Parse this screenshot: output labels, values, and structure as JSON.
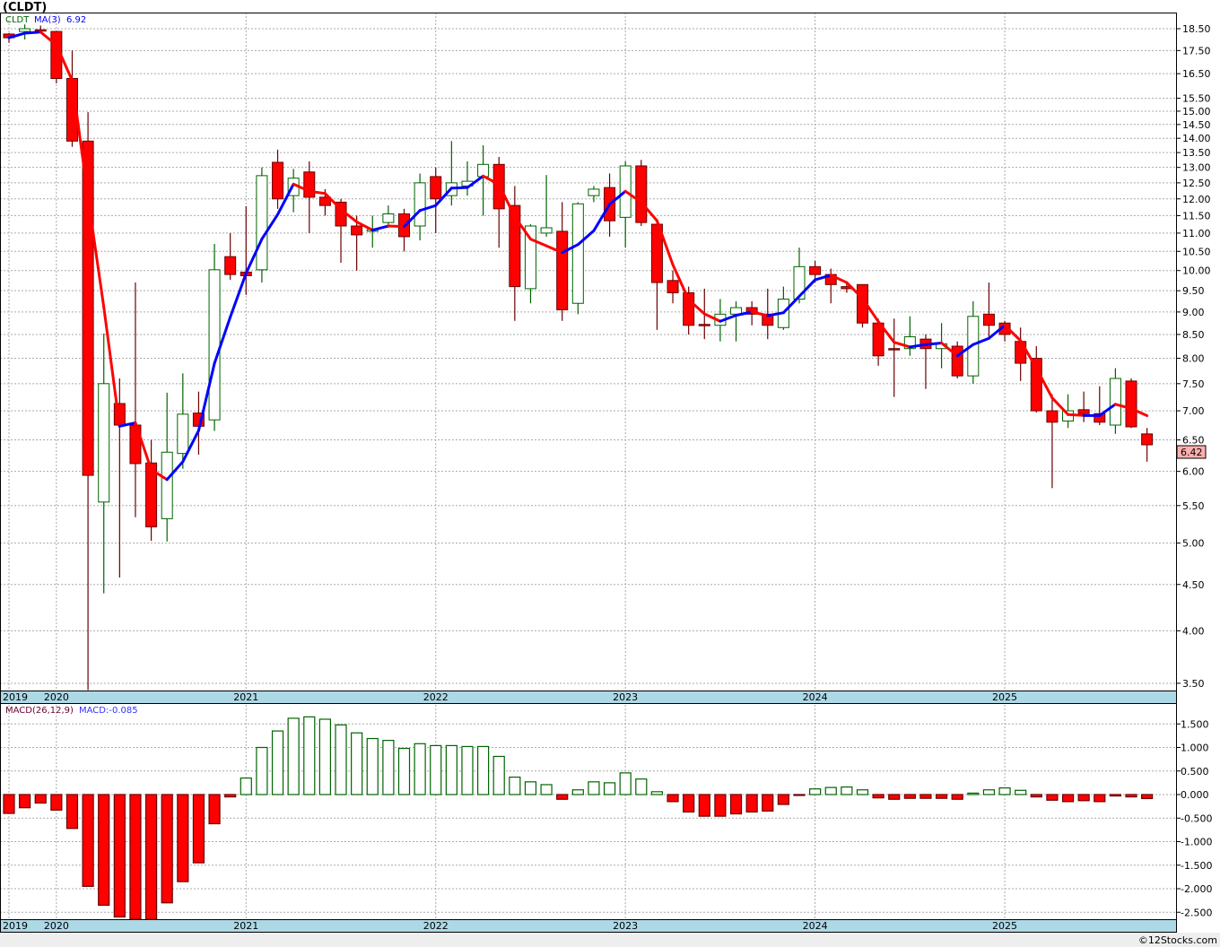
{
  "header": {
    "title": "(CLDT)"
  },
  "legend": {
    "symbol": "CLDT",
    "ma_label": "MA(3)",
    "ma_value": "6.92"
  },
  "macd_legend": {
    "label": "MACD(26,12,9)",
    "value": "MACD:-0.085"
  },
  "last_price": "6.42",
  "footer": "©12Stocks.com",
  "colors": {
    "up": "#006400",
    "down": "#ff0000",
    "down_outline": "#6b0000",
    "ma_up": "#0000ff",
    "ma_down": "#ff0000",
    "axis_band": "#add8e6"
  },
  "chart_data": [
    {
      "type": "candlestick",
      "title": "(CLDT)",
      "scale": "log",
      "ylim": [
        3.45,
        18.9
      ],
      "y_ticks": [
        "18.50",
        "17.50",
        "16.50",
        "15.50",
        "15.00",
        "14.50",
        "14.00",
        "13.50",
        "13.00",
        "12.50",
        "12.00",
        "11.50",
        "11.00",
        "10.50",
        "10.00",
        "9.50",
        "9.00",
        "8.50",
        "8.00",
        "7.50",
        "7.00",
        "6.50",
        "6.00",
        "5.50",
        "5.00",
        "4.50",
        "4.00",
        "3.50"
      ],
      "x_labels": [
        "2019",
        "2020",
        "2021",
        "2022",
        "2023",
        "2024",
        "2025"
      ],
      "x_label_index": [
        0,
        3,
        15,
        27,
        39,
        51,
        63
      ],
      "period": "monthly, Oct 2019 - Oct 2025",
      "ohlc": [
        [
          18.25,
          18.3,
          17.85,
          18.08
        ],
        [
          18.37,
          18.7,
          18.0,
          18.5
        ],
        [
          18.45,
          18.65,
          18.3,
          18.45
        ],
        [
          18.37,
          18.4,
          16.1,
          16.3
        ],
        [
          16.3,
          17.5,
          13.7,
          13.9
        ],
        [
          13.9,
          14.96,
          3.44,
          5.94
        ],
        [
          5.55,
          8.52,
          4.4,
          7.5
        ],
        [
          7.13,
          7.6,
          4.58,
          6.75
        ],
        [
          6.75,
          9.7,
          5.34,
          6.12
        ],
        [
          6.13,
          6.5,
          5.03,
          5.21
        ],
        [
          5.32,
          7.33,
          5.02,
          6.3
        ],
        [
          6.28,
          7.7,
          6.04,
          6.94
        ],
        [
          6.96,
          7.35,
          6.26,
          6.73
        ],
        [
          6.84,
          10.7,
          6.65,
          10.02
        ],
        [
          10.36,
          11.0,
          9.77,
          9.9
        ],
        [
          9.96,
          11.78,
          9.4,
          9.87
        ],
        [
          10.02,
          13.0,
          9.7,
          12.73
        ],
        [
          13.17,
          13.6,
          11.7,
          12.0
        ],
        [
          12.1,
          12.95,
          11.6,
          12.65
        ],
        [
          12.85,
          13.2,
          11.0,
          12.05
        ],
        [
          12.05,
          12.3,
          11.5,
          11.8
        ],
        [
          11.9,
          12.0,
          10.2,
          11.2
        ],
        [
          11.2,
          11.5,
          10.0,
          10.95
        ],
        [
          11.05,
          11.5,
          10.6,
          11.1
        ],
        [
          11.3,
          11.8,
          11.15,
          11.55
        ],
        [
          11.55,
          11.7,
          10.5,
          10.9
        ],
        [
          11.2,
          12.8,
          10.8,
          12.5
        ],
        [
          12.7,
          13.0,
          11.0,
          12.0
        ],
        [
          12.1,
          13.9,
          11.8,
          12.5
        ],
        [
          12.4,
          13.2,
          12.1,
          12.55
        ],
        [
          12.7,
          13.75,
          11.5,
          13.1
        ],
        [
          13.1,
          13.35,
          10.6,
          11.7
        ],
        [
          11.8,
          12.4,
          8.8,
          9.6
        ],
        [
          9.55,
          11.25,
          9.2,
          11.2
        ],
        [
          11.0,
          12.75,
          10.9,
          11.15
        ],
        [
          11.05,
          11.9,
          8.8,
          9.05
        ],
        [
          9.2,
          11.9,
          8.95,
          11.85
        ],
        [
          12.1,
          12.4,
          11.9,
          12.3
        ],
        [
          12.35,
          12.8,
          10.9,
          11.35
        ],
        [
          11.45,
          13.2,
          10.6,
          13.05
        ],
        [
          13.05,
          13.25,
          11.2,
          11.3
        ],
        [
          11.25,
          11.4,
          8.6,
          9.7
        ],
        [
          9.75,
          10.0,
          9.2,
          9.45
        ],
        [
          9.45,
          9.6,
          8.5,
          8.7
        ],
        [
          8.72,
          9.55,
          8.4,
          8.72
        ],
        [
          8.7,
          9.3,
          8.35,
          8.95
        ],
        [
          8.95,
          9.25,
          8.35,
          9.1
        ],
        [
          9.1,
          9.25,
          8.7,
          8.95
        ],
        [
          8.95,
          9.55,
          8.4,
          8.7
        ],
        [
          8.65,
          9.6,
          8.6,
          9.3
        ],
        [
          9.3,
          10.6,
          9.2,
          10.1
        ],
        [
          10.1,
          10.25,
          9.7,
          9.9
        ],
        [
          9.9,
          10.05,
          9.2,
          9.65
        ],
        [
          9.6,
          9.7,
          9.45,
          9.55
        ],
        [
          9.65,
          9.65,
          8.65,
          8.75
        ],
        [
          8.75,
          8.85,
          7.85,
          8.05
        ],
        [
          8.2,
          8.85,
          7.25,
          8.2
        ],
        [
          8.2,
          8.9,
          8.05,
          8.45
        ],
        [
          8.4,
          8.5,
          7.4,
          8.2
        ],
        [
          8.2,
          8.75,
          7.8,
          8.3
        ],
        [
          8.25,
          8.35,
          7.6,
          7.65
        ],
        [
          7.65,
          9.25,
          7.5,
          8.9
        ],
        [
          8.95,
          9.7,
          8.45,
          8.7
        ],
        [
          8.75,
          8.8,
          8.35,
          8.5
        ],
        [
          8.35,
          8.65,
          7.55,
          7.9
        ],
        [
          8.0,
          8.25,
          6.97,
          7.0
        ],
        [
          7.0,
          7.3,
          5.75,
          6.8
        ],
        [
          6.82,
          7.3,
          6.7,
          7.0
        ],
        [
          7.02,
          7.35,
          6.8,
          6.95
        ],
        [
          6.95,
          7.45,
          6.75,
          6.8
        ],
        [
          6.75,
          7.8,
          6.6,
          7.6
        ],
        [
          7.55,
          7.6,
          6.7,
          6.72
        ],
        [
          6.6,
          6.7,
          6.15,
          6.42
        ]
      ],
      "ma_period": 3
    },
    {
      "type": "bar",
      "title": "MACD(26,12,9)",
      "ylim": [
        -2.7,
        1.85
      ],
      "y_ticks": [
        "1.500",
        "1.000",
        "0.500",
        "0.000",
        "-0.500",
        "-1.000",
        "-1.500",
        "-2.000",
        "-2.500"
      ],
      "x_labels": [
        "2019",
        "2020",
        "2021",
        "2022",
        "2023",
        "2024",
        "2025"
      ],
      "values": [
        -0.4,
        -0.28,
        -0.18,
        -0.33,
        -0.72,
        -1.95,
        -2.35,
        -2.6,
        -2.65,
        -2.65,
        -2.3,
        -1.85,
        -1.45,
        -0.62,
        -0.05,
        0.35,
        1.0,
        1.35,
        1.62,
        1.65,
        1.6,
        1.48,
        1.31,
        1.19,
        1.15,
        0.98,
        1.08,
        1.04,
        1.04,
        1.02,
        1.02,
        0.81,
        0.37,
        0.27,
        0.21,
        -0.1,
        0.1,
        0.27,
        0.25,
        0.46,
        0.33,
        0.06,
        -0.15,
        -0.37,
        -0.46,
        -0.46,
        -0.41,
        -0.37,
        -0.35,
        -0.21,
        -0.01,
        0.12,
        0.15,
        0.16,
        0.1,
        -0.07,
        -0.1,
        -0.08,
        -0.08,
        -0.08,
        -0.1,
        0.03,
        0.1,
        0.14,
        0.09,
        -0.05,
        -0.12,
        -0.15,
        -0.13,
        -0.15,
        -0.03,
        -0.05,
        -0.085
      ]
    }
  ]
}
